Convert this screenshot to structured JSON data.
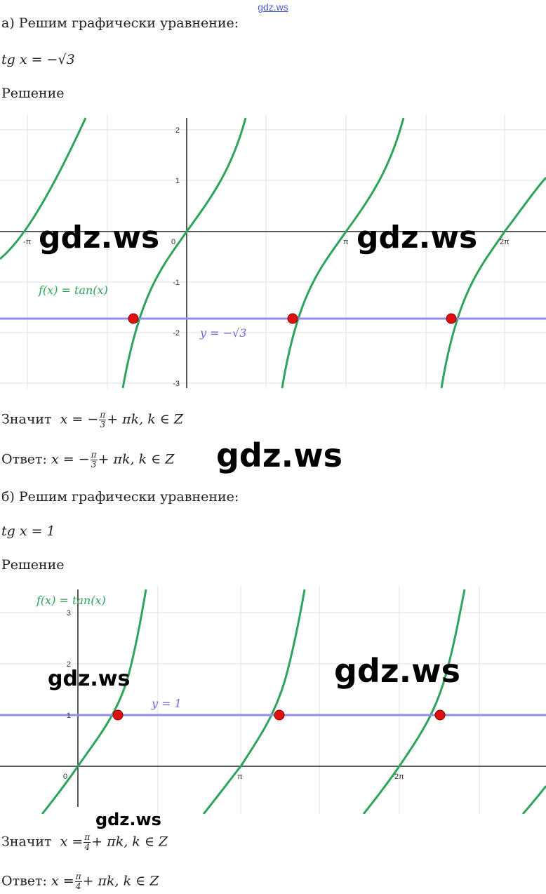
{
  "watermark_top": "gdz.ws",
  "watermark": "gdz.ws",
  "part_a": {
    "heading": "а) Решим графически уравнение:",
    "equation": "tg x = −√3",
    "solution_label": "Решение",
    "graph": {
      "function_label": "f(x) = tan(x)",
      "line_label": "y = −√3",
      "y_ticks": [
        "2",
        "1",
        "-1",
        "-2",
        "-3"
      ],
      "x_ticks": [
        "-π",
        "0",
        "π",
        "2π"
      ]
    },
    "conclusion_prefix": "Значит",
    "answer_prefix": "Ответ:",
    "result_pre": "x = −",
    "frac_num": "π",
    "frac_den": "3",
    "result_post": "+ πk, k ∈ Z"
  },
  "part_b": {
    "heading": "б) Решим графически уравнение:",
    "equation": "tg x = 1",
    "solution_label": "Решение",
    "graph": {
      "function_label": "f(x) = tan(x)",
      "line_label": "y = 1",
      "y_ticks": [
        "3",
        "2",
        "1"
      ],
      "x_ticks": [
        "0",
        "π",
        "2π"
      ]
    },
    "conclusion_prefix": "Значит",
    "answer_prefix": "Ответ:",
    "result_pre": "x =",
    "frac_num": "π",
    "frac_den": "4",
    "result_post": "+ πk, k ∈ Z"
  }
}
